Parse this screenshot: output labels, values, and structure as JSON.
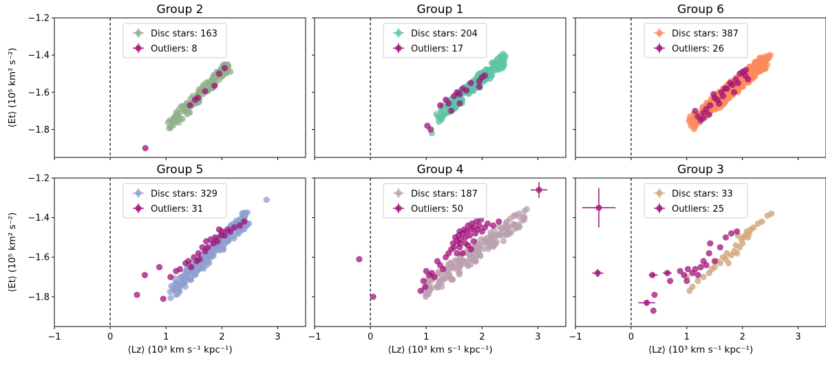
{
  "colors": {
    "outlier": "#a0107a",
    "group2": "#8fb08a",
    "group1": "#5ec4a6",
    "group6": "#fb8a5c",
    "group5": "#8fa0cf",
    "group4": "#bba0ae",
    "group3": "#d2a67a"
  },
  "chart_data": [
    {
      "type": "scatter",
      "title": "Group 2",
      "color_key": "group2",
      "xlabel": "",
      "ylabel": "⟨Et⟩ (10⁵ km² s⁻²)",
      "xlim": [
        -1,
        3.5
      ],
      "ylim": [
        -1.95,
        -1.2
      ],
      "legend": [
        {
          "label": "Disc stars: 163"
        },
        {
          "label": "Outliers: 8"
        }
      ],
      "disc": {
        "band": [
          [
            1.05,
            -1.78
          ],
          [
            2.12,
            -1.46
          ]
        ],
        "n": 140,
        "width": 0.03
      },
      "outliers": [
        [
          0.63,
          -1.9
        ],
        [
          1.43,
          -1.67
        ],
        [
          1.57,
          -1.63
        ],
        [
          1.7,
          -1.595
        ],
        [
          1.87,
          -1.565
        ],
        [
          1.95,
          -1.5
        ],
        [
          2.05,
          -1.47
        ],
        [
          1.52,
          -1.64
        ]
      ]
    },
    {
      "type": "scatter",
      "title": "Group 1",
      "color_key": "group1",
      "xlabel": "",
      "ylabel": "",
      "xlim": [
        -1,
        3.5
      ],
      "ylim": [
        -1.95,
        -1.2
      ],
      "legend": [
        {
          "label": "Disc stars: 204"
        },
        {
          "label": "Outliers: 17"
        }
      ],
      "disc": {
        "band": [
          [
            1.2,
            -1.73
          ],
          [
            2.4,
            -1.42
          ]
        ],
        "n": 200,
        "width": 0.035
      },
      "extra_disc": [
        [
          1.1,
          -1.82
        ],
        [
          2.38,
          -1.42
        ],
        [
          1.28,
          -1.74
        ]
      ],
      "outliers": [
        [
          1.02,
          -1.78
        ],
        [
          1.08,
          -1.8
        ],
        [
          1.25,
          -1.67
        ],
        [
          1.35,
          -1.64
        ],
        [
          1.4,
          -1.66
        ],
        [
          1.5,
          -1.62
        ],
        [
          1.55,
          -1.6
        ],
        [
          1.6,
          -1.61
        ],
        [
          1.65,
          -1.58
        ],
        [
          1.72,
          -1.59
        ],
        [
          1.8,
          -1.55
        ],
        [
          1.95,
          -1.54
        ],
        [
          2.0,
          -1.52
        ],
        [
          2.05,
          -1.51
        ],
        [
          1.95,
          -1.57
        ],
        [
          1.6,
          -1.66
        ],
        [
          1.45,
          -1.7
        ]
      ]
    },
    {
      "type": "scatter",
      "title": "Group 6",
      "color_key": "group6",
      "xlabel": "",
      "ylabel": "",
      "xlim": [
        -1,
        3.5
      ],
      "ylim": [
        -1.95,
        -1.2
      ],
      "legend": [
        {
          "label": "Disc stars: 387"
        },
        {
          "label": "Outliers: 26"
        }
      ],
      "disc": {
        "band": [
          [
            1.05,
            -1.77
          ],
          [
            2.45,
            -1.42
          ]
        ],
        "n": 300,
        "width": 0.04
      },
      "extra_disc": [
        [
          2.5,
          -1.4
        ]
      ],
      "outliers": [
        [
          1.15,
          -1.7
        ],
        [
          1.2,
          -1.73
        ],
        [
          1.25,
          -1.75
        ],
        [
          1.3,
          -1.71
        ],
        [
          1.35,
          -1.69
        ],
        [
          1.42,
          -1.67
        ],
        [
          1.48,
          -1.61
        ],
        [
          1.5,
          -1.63
        ],
        [
          1.55,
          -1.64
        ],
        [
          1.62,
          -1.6
        ],
        [
          1.68,
          -1.58
        ],
        [
          1.72,
          -1.58
        ],
        [
          1.78,
          -1.55
        ],
        [
          1.82,
          -1.56
        ],
        [
          1.88,
          -1.53
        ],
        [
          1.95,
          -1.5
        ],
        [
          2.0,
          -1.49
        ],
        [
          2.06,
          -1.48
        ],
        [
          2.1,
          -1.53
        ],
        [
          1.4,
          -1.72
        ],
        [
          1.58,
          -1.66
        ],
        [
          1.85,
          -1.6
        ],
        [
          2.05,
          -1.51
        ],
        [
          1.65,
          -1.62
        ],
        [
          1.3,
          -1.74
        ],
        [
          1.92,
          -1.55
        ]
      ]
    },
    {
      "type": "scatter",
      "title": "Group 5",
      "color_key": "group5",
      "xlabel": "⟨Lz⟩ (10³ km s⁻¹ kpc⁻¹)",
      "ylabel": "⟨Et⟩ (10⁵ km² s⁻²)",
      "xlim": [
        -1,
        3.5
      ],
      "ylim": [
        -1.95,
        -1.2
      ],
      "legend": [
        {
          "label": "Disc stars: 329"
        },
        {
          "label": "Outliers: 31"
        }
      ],
      "disc": {
        "band": [
          [
            1.1,
            -1.77
          ],
          [
            2.45,
            -1.4
          ]
        ],
        "n": 260,
        "width": 0.04
      },
      "extra_disc": [
        [
          2.8,
          -1.31
        ]
      ],
      "outliers": [
        [
          0.48,
          -1.79
        ],
        [
          0.62,
          -1.69
        ],
        [
          0.95,
          -1.81
        ],
        [
          0.88,
          -1.65
        ],
        [
          1.08,
          -1.7
        ],
        [
          1.18,
          -1.67
        ],
        [
          1.25,
          -1.66
        ],
        [
          1.4,
          -1.62
        ],
        [
          1.45,
          -1.65
        ],
        [
          1.55,
          -1.62
        ],
        [
          1.6,
          -1.61
        ],
        [
          1.58,
          -1.58
        ],
        [
          1.65,
          -1.55
        ],
        [
          1.72,
          -1.52
        ],
        [
          1.75,
          -1.55
        ],
        [
          1.8,
          -1.51
        ],
        [
          1.85,
          -1.53
        ],
        [
          1.88,
          -1.5
        ],
        [
          1.92,
          -1.52
        ],
        [
          1.98,
          -1.49
        ],
        [
          2.0,
          -1.47
        ],
        [
          2.05,
          -1.49
        ],
        [
          2.1,
          -1.46
        ],
        [
          2.15,
          -1.47
        ],
        [
          2.22,
          -1.45
        ],
        [
          2.32,
          -1.44
        ],
        [
          2.4,
          -1.42
        ],
        [
          1.35,
          -1.63
        ],
        [
          1.5,
          -1.6
        ],
        [
          1.7,
          -1.57
        ],
        [
          1.95,
          -1.46
        ]
      ]
    },
    {
      "type": "scatter",
      "title": "Group 4",
      "color_key": "group4",
      "xlabel": "⟨Lz⟩ (10³ km s⁻¹ kpc⁻¹)",
      "ylabel": "",
      "xlim": [
        -1,
        3.5
      ],
      "ylim": [
        -1.95,
        -1.2
      ],
      "legend": [
        {
          "label": "Disc stars: 187"
        },
        {
          "label": "Outliers: 50"
        }
      ],
      "disc": {
        "band": [
          [
            0.95,
            -1.78
          ],
          [
            2.8,
            -1.38
          ]
        ],
        "n": 170,
        "width": 0.045
      },
      "outliers": [
        [
          -0.2,
          -1.61
        ],
        [
          0.05,
          -1.8
        ],
        [
          0.9,
          -1.77
        ],
        [
          0.95,
          -1.72
        ],
        [
          0.98,
          -1.75
        ],
        [
          1.0,
          -1.67
        ],
        [
          1.1,
          -1.68
        ],
        [
          1.2,
          -1.62
        ],
        [
          1.05,
          -1.69
        ],
        [
          1.3,
          -1.66
        ],
        [
          1.35,
          -1.6
        ],
        [
          1.4,
          -1.58
        ],
        [
          1.45,
          -1.56
        ],
        [
          1.48,
          -1.53
        ],
        [
          1.5,
          -1.55
        ],
        [
          1.52,
          -1.5
        ],
        [
          1.55,
          -1.52
        ],
        [
          1.58,
          -1.49
        ],
        [
          1.6,
          -1.47
        ],
        [
          1.62,
          -1.51
        ],
        [
          1.65,
          -1.48
        ],
        [
          1.68,
          -1.46
        ],
        [
          1.7,
          -1.5
        ],
        [
          1.72,
          -1.47
        ],
        [
          1.75,
          -1.44
        ],
        [
          1.78,
          -1.49
        ],
        [
          1.8,
          -1.46
        ],
        [
          1.82,
          -1.43
        ],
        [
          1.85,
          -1.45
        ],
        [
          1.88,
          -1.48
        ],
        [
          1.9,
          -1.42
        ],
        [
          1.92,
          -1.46
        ],
        [
          1.95,
          -1.44
        ],
        [
          1.98,
          -1.41
        ],
        [
          2.0,
          -1.47
        ],
        [
          2.05,
          -1.45
        ],
        [
          2.1,
          -1.43
        ],
        [
          2.2,
          -1.44
        ],
        [
          2.3,
          -1.42
        ],
        [
          1.55,
          -1.58
        ],
        [
          1.6,
          -1.55
        ],
        [
          1.65,
          -1.58
        ],
        [
          1.75,
          -1.54
        ],
        [
          1.8,
          -1.56
        ],
        [
          1.7,
          -1.53
        ],
        [
          1.85,
          -1.52
        ],
        [
          1.25,
          -1.64
        ],
        [
          1.15,
          -1.7
        ],
        [
          1.6,
          -1.53
        ],
        [
          3.02,
          -1.26
        ]
      ],
      "error_bars": [
        {
          "x": 3.02,
          "y": -1.26,
          "xerr": 0.15,
          "yerr": 0.04
        }
      ]
    },
    {
      "type": "scatter",
      "title": "Group 3",
      "color_key": "group3",
      "xlabel": "⟨Lz⟩ (10³ km s⁻¹ kpc⁻¹)",
      "ylabel": "",
      "xlim": [
        -1,
        3.5
      ],
      "ylim": [
        -1.95,
        -1.2
      ],
      "legend": [
        {
          "label": "Disc stars: 33"
        },
        {
          "label": "Outliers: 25"
        }
      ],
      "disc_points": [
        [
          1.05,
          -1.77
        ],
        [
          1.1,
          -1.75
        ],
        [
          1.3,
          -1.7
        ],
        [
          1.45,
          -1.66
        ],
        [
          1.6,
          -1.63
        ],
        [
          1.7,
          -1.61
        ],
        [
          1.75,
          -1.63
        ],
        [
          1.8,
          -1.59
        ],
        [
          1.85,
          -1.57
        ],
        [
          1.9,
          -1.58
        ],
        [
          1.95,
          -1.55
        ],
        [
          2.0,
          -1.53
        ],
        [
          2.02,
          -1.5
        ],
        [
          2.05,
          -1.49
        ],
        [
          2.1,
          -1.5
        ],
        [
          2.15,
          -1.46
        ],
        [
          2.2,
          -1.45
        ],
        [
          2.28,
          -1.43
        ],
        [
          2.35,
          -1.42
        ],
        [
          2.45,
          -1.39
        ],
        [
          2.52,
          -1.38
        ],
        [
          1.5,
          -1.65
        ],
        [
          1.65,
          -1.6
        ],
        [
          1.4,
          -1.68
        ],
        [
          1.55,
          -1.62
        ],
        [
          1.72,
          -1.58
        ],
        [
          1.88,
          -1.54
        ],
        [
          1.98,
          -1.51
        ],
        [
          2.08,
          -1.47
        ],
        [
          1.2,
          -1.72
        ],
        [
          1.92,
          -1.49
        ],
        [
          2.12,
          -1.48
        ],
        [
          1.0,
          -1.7
        ]
      ],
      "outliers": [
        [
          -0.58,
          -1.35
        ],
        [
          -0.6,
          -1.68
        ],
        [
          0.28,
          -1.83
        ],
        [
          0.4,
          -1.87
        ],
        [
          0.42,
          -1.79
        ],
        [
          0.38,
          -1.69
        ],
        [
          0.65,
          -1.68
        ],
        [
          0.88,
          -1.67
        ],
        [
          0.95,
          -1.69
        ],
        [
          1.02,
          -1.66
        ],
        [
          1.1,
          -1.68
        ],
        [
          1.15,
          -1.66
        ],
        [
          1.25,
          -1.65
        ],
        [
          1.3,
          -1.62
        ],
        [
          1.4,
          -1.58
        ],
        [
          1.42,
          -1.53
        ],
        [
          1.5,
          -1.62
        ],
        [
          1.6,
          -1.55
        ],
        [
          1.7,
          -1.5
        ],
        [
          1.8,
          -1.48
        ],
        [
          1.9,
          -1.47
        ],
        [
          0.7,
          -1.72
        ],
        [
          1.0,
          -1.72
        ],
        [
          1.2,
          -1.69
        ],
        [
          1.35,
          -1.64
        ]
      ],
      "error_bars": [
        {
          "x": -0.58,
          "y": -1.35,
          "xerr": 0.3,
          "yerr": 0.1
        },
        {
          "x": -0.6,
          "y": -1.68,
          "xerr": 0.1,
          "yerr": 0.02
        },
        {
          "x": 0.28,
          "y": -1.83,
          "xerr": 0.15,
          "yerr": 0.015
        },
        {
          "x": 0.65,
          "y": -1.68,
          "xerr": 0.08,
          "yerr": 0.012
        },
        {
          "x": 0.4,
          "y": -1.69,
          "xerr": 0.08,
          "yerr": 0.012
        }
      ]
    }
  ],
  "axes": {
    "xticks": [
      -1,
      0,
      1,
      2,
      3
    ],
    "yticks": [
      -1.2,
      -1.4,
      -1.6,
      -1.8
    ]
  }
}
